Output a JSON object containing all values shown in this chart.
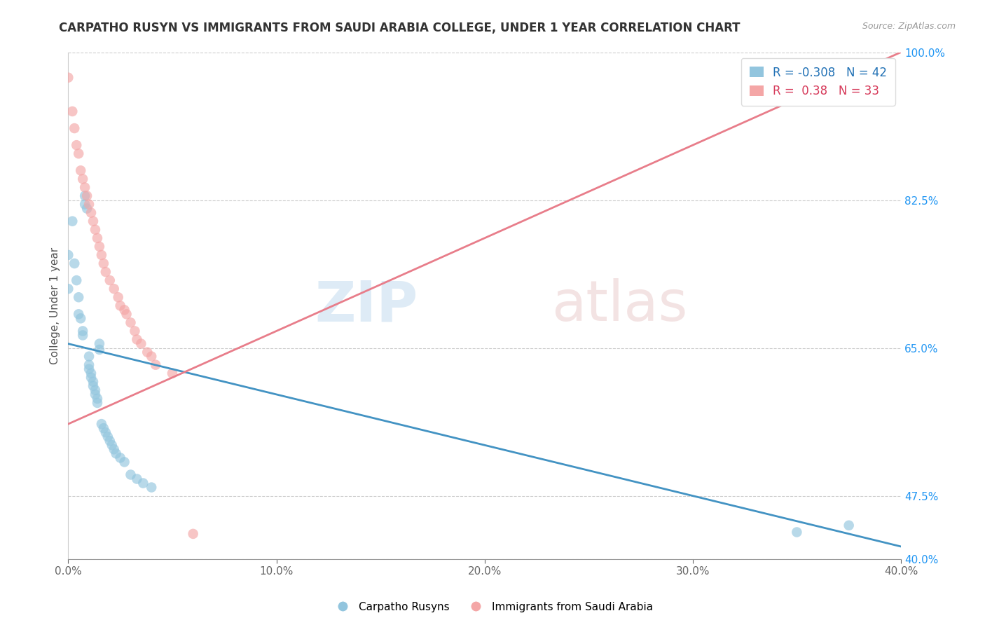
{
  "title": "CARPATHO RUSYN VS IMMIGRANTS FROM SAUDI ARABIA COLLEGE, UNDER 1 YEAR CORRELATION CHART",
  "source": "Source: ZipAtlas.com",
  "ylabel": "College, Under 1 year",
  "xmin": 0.0,
  "xmax": 0.4,
  "ymin": 0.4,
  "ymax": 1.0,
  "y_ticks": [
    0.4,
    0.475,
    0.65,
    0.825,
    1.0
  ],
  "y_tick_labels": [
    "40.0%",
    "47.5%",
    "65.0%",
    "82.5%",
    "100.0%"
  ],
  "x_ticks": [
    0.0,
    0.1,
    0.2,
    0.3,
    0.4
  ],
  "x_tick_labels": [
    "0.0%",
    "10.0%",
    "20.0%",
    "30.0%",
    "40.0%"
  ],
  "blue_R": -0.308,
  "blue_N": 42,
  "pink_R": 0.38,
  "pink_N": 33,
  "blue_color": "#92c5de",
  "pink_color": "#f4a6a6",
  "blue_line_color": "#4393c3",
  "pink_line_color": "#e87d8a",
  "blue_scatter_x": [
    0.0,
    0.0,
    0.002,
    0.003,
    0.004,
    0.005,
    0.005,
    0.006,
    0.007,
    0.007,
    0.008,
    0.008,
    0.009,
    0.01,
    0.01,
    0.01,
    0.011,
    0.011,
    0.012,
    0.012,
    0.013,
    0.013,
    0.014,
    0.014,
    0.015,
    0.015,
    0.016,
    0.017,
    0.018,
    0.019,
    0.02,
    0.021,
    0.022,
    0.023,
    0.025,
    0.027,
    0.03,
    0.033,
    0.036,
    0.04,
    0.35,
    0.375
  ],
  "blue_scatter_y": [
    0.76,
    0.72,
    0.8,
    0.75,
    0.73,
    0.71,
    0.69,
    0.685,
    0.67,
    0.665,
    0.83,
    0.82,
    0.815,
    0.64,
    0.63,
    0.625,
    0.62,
    0.615,
    0.61,
    0.605,
    0.6,
    0.595,
    0.59,
    0.585,
    0.655,
    0.648,
    0.56,
    0.555,
    0.55,
    0.545,
    0.54,
    0.535,
    0.53,
    0.525,
    0.52,
    0.515,
    0.5,
    0.495,
    0.49,
    0.485,
    0.432,
    0.44
  ],
  "pink_scatter_x": [
    0.0,
    0.002,
    0.003,
    0.004,
    0.005,
    0.006,
    0.007,
    0.008,
    0.009,
    0.01,
    0.011,
    0.012,
    0.013,
    0.014,
    0.015,
    0.016,
    0.017,
    0.018,
    0.02,
    0.022,
    0.024,
    0.025,
    0.027,
    0.028,
    0.03,
    0.032,
    0.033,
    0.035,
    0.038,
    0.04,
    0.042,
    0.05,
    0.06
  ],
  "pink_scatter_y": [
    0.97,
    0.93,
    0.91,
    0.89,
    0.88,
    0.86,
    0.85,
    0.84,
    0.83,
    0.82,
    0.81,
    0.8,
    0.79,
    0.78,
    0.77,
    0.76,
    0.75,
    0.74,
    0.73,
    0.72,
    0.71,
    0.7,
    0.695,
    0.69,
    0.68,
    0.67,
    0.66,
    0.655,
    0.645,
    0.64,
    0.63,
    0.62,
    0.43
  ],
  "blue_line_x": [
    0.0,
    0.4
  ],
  "blue_line_y": [
    0.655,
    0.415
  ],
  "pink_line_x": [
    0.0,
    0.4
  ],
  "pink_line_y": [
    0.56,
    1.0
  ]
}
